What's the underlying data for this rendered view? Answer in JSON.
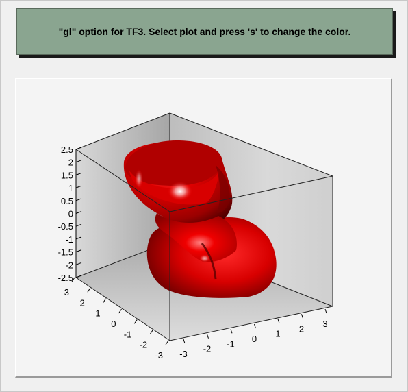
{
  "title": "\"gl\" option for TF3. Select plot and press 's' to change the color.",
  "surface_color": "#e00000",
  "chart_data": {
    "type": "surface3d",
    "z_ticks": [
      "2.5",
      "2",
      "1.5",
      "1",
      "0.5",
      "0",
      "-0.5",
      "-1",
      "-1.5",
      "-2",
      "-2.5"
    ],
    "y_ticks": [
      "3",
      "2",
      "1",
      "0",
      "-1",
      "-2",
      "-3"
    ],
    "x_ticks": [
      "-3",
      "-2",
      "-1",
      "0",
      "1",
      "2",
      "3"
    ],
    "x_range": [
      -3,
      3
    ],
    "y_range": [
      -3,
      3
    ],
    "z_range": [
      -2.5,
      2.5
    ]
  }
}
